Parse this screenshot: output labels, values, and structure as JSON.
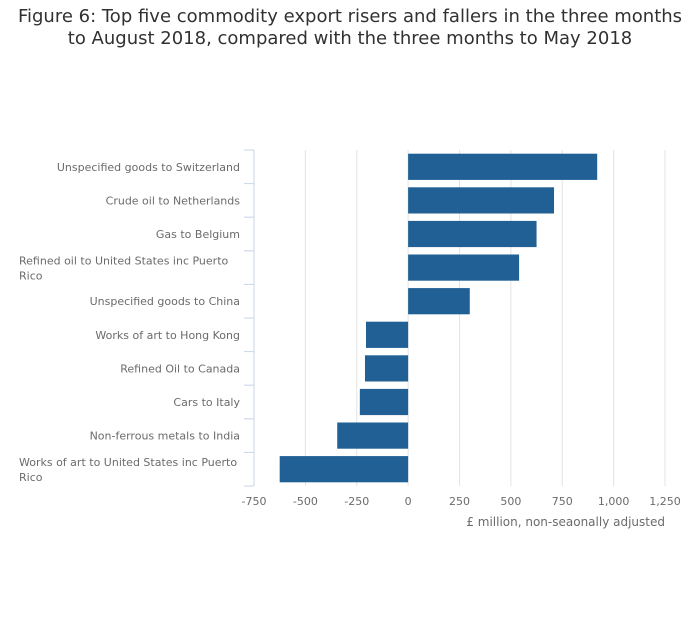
{
  "chart_data": {
    "type": "bar",
    "orientation": "horizontal",
    "title_lines": [
      "Figure 6: Top five commodity export risers and fallers in the three months",
      "to August 2018, compared with the three months to May 2018"
    ],
    "categories": [
      [
        "Unspecified goods to Switzerland"
      ],
      [
        "Crude oil to Netherlands"
      ],
      [
        "Gas to Belgium"
      ],
      [
        "Refined oil to United States inc Puerto",
        "Rico"
      ],
      [
        "Unspecified goods to China"
      ],
      [
        "Works of art to Hong Kong"
      ],
      [
        "Refined Oil to Canada"
      ],
      [
        "Cars to Italy"
      ],
      [
        "Non-ferrous metals to India"
      ],
      [
        "Works of art to United States inc Puerto",
        "Rico"
      ]
    ],
    "values": [
      920,
      710,
      625,
      540,
      300,
      -205,
      -210,
      -235,
      -345,
      -625
    ],
    "xlabel": "£ million, non-seaonally adjusted",
    "xlim": [
      -750,
      1250
    ],
    "ticks": [
      -750,
      -500,
      -250,
      0,
      250,
      500,
      750,
      1000,
      1250
    ],
    "tick_labels": [
      "-750",
      "-500",
      "-250",
      "0",
      "250",
      "500",
      "750",
      "1,000",
      "1,250"
    ],
    "bar_color": "#206095",
    "grid": true
  }
}
